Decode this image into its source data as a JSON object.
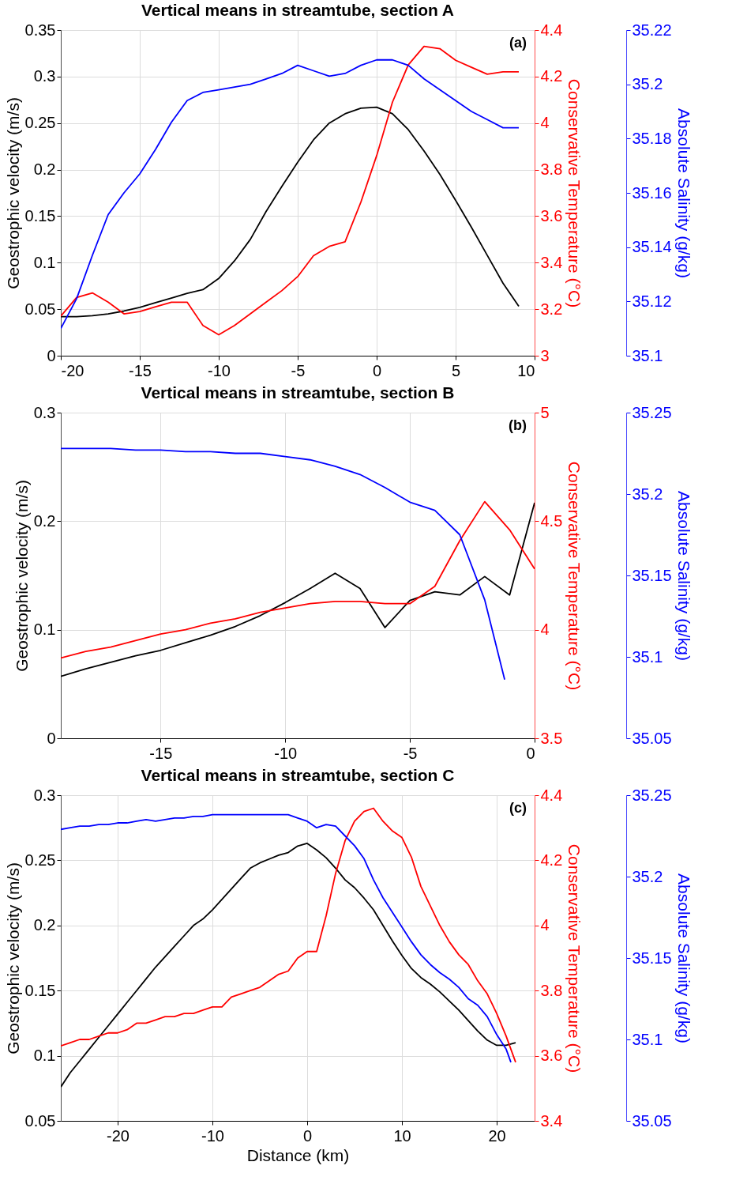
{
  "chart_data": [
    {
      "type": "line",
      "title": "Vertical means in streamtube, section A",
      "ylabel": "Geostrophic velocity (m/s)",
      "y2label": "Conservative Temperature (°C)",
      "y3label": "Absolute Salinity (g/kg)",
      "annotations": [
        "(a)"
      ],
      "grid": true,
      "xlim": [
        -20,
        10
      ],
      "xticks": [
        -20,
        -15,
        -10,
        -5,
        0,
        5,
        10
      ],
      "ylim": [
        0,
        0.35
      ],
      "yticks": [
        0,
        0.05,
        0.1,
        0.15,
        0.2,
        0.25,
        0.3,
        0.35
      ],
      "y2lim": [
        3,
        4.4
      ],
      "y2ticks": [
        3,
        3.2,
        3.4,
        3.6,
        3.8,
        4,
        4.2,
        4.4
      ],
      "y3lim": [
        35.1,
        35.22
      ],
      "y3ticks": [
        35.1,
        35.12,
        35.14,
        35.16,
        35.18,
        35.2,
        35.22
      ],
      "x": [
        -20,
        -19,
        -18,
        -17,
        -16,
        -15,
        -14,
        -13,
        -12,
        -11,
        -10,
        -9,
        -8,
        -7,
        -6,
        -5,
        -4,
        -3,
        -2,
        -1,
        0,
        1,
        2,
        3,
        4,
        5,
        6,
        7,
        8,
        9
      ],
      "series": [
        {
          "color": "#000000",
          "axis": "y",
          "values": [
            0.042,
            0.042,
            0.043,
            0.045,
            0.048,
            0.052,
            0.057,
            0.062,
            0.067,
            0.071,
            0.083,
            0.102,
            0.125,
            0.155,
            0.182,
            0.208,
            0.232,
            0.25,
            0.26,
            0.266,
            0.267,
            0.26,
            0.243,
            0.22,
            0.195,
            0.167,
            0.138,
            0.108,
            0.078,
            0.053
          ]
        },
        {
          "color": "#ff0000",
          "axis": "y2",
          "values": [
            3.17,
            3.25,
            3.27,
            3.23,
            3.18,
            3.19,
            3.21,
            3.23,
            3.23,
            3.13,
            3.09,
            3.13,
            3.18,
            3.23,
            3.28,
            3.34,
            3.43,
            3.47,
            3.49,
            3.66,
            3.86,
            4.09,
            4.25,
            4.33,
            4.32,
            4.27,
            4.24,
            4.21,
            4.22,
            4.22
          ]
        },
        {
          "color": "#0000ff",
          "axis": "y3",
          "values": [
            35.11,
            35.121,
            35.137,
            35.152,
            35.16,
            35.167,
            35.176,
            35.186,
            35.194,
            35.197,
            35.198,
            35.199,
            35.2,
            35.202,
            35.204,
            35.207,
            35.205,
            35.203,
            35.204,
            35.207,
            35.209,
            35.209,
            35.207,
            35.202,
            35.198,
            35.194,
            35.19,
            35.187,
            35.184,
            35.184
          ]
        }
      ]
    },
    {
      "type": "line",
      "title": "Vertical means in streamtube, section B",
      "ylabel": "Geostrophic velocity (m/s)",
      "y2label": "Conservative Temperature (°C)",
      "y3label": "Absolute Salinity (g/kg)",
      "annotations": [
        "(b)"
      ],
      "grid": true,
      "xlim": [
        -19,
        0
      ],
      "xticks": [
        -15,
        -10,
        -5,
        0
      ],
      "ylim": [
        0,
        0.3
      ],
      "yticks": [
        0,
        0.1,
        0.2,
        0.3
      ],
      "y2lim": [
        3.5,
        5
      ],
      "y2ticks": [
        3.5,
        4,
        4.5,
        5
      ],
      "y3lim": [
        35.05,
        35.25
      ],
      "y3ticks": [
        35.05,
        35.1,
        35.15,
        35.2,
        35.25
      ],
      "x": [
        -19,
        -18,
        -17,
        -16,
        -15,
        -14,
        -13,
        -12,
        -11,
        -10,
        -9,
        -8,
        -7,
        -6,
        -5,
        -4,
        -3,
        -2,
        -1,
        0
      ],
      "series": [
        {
          "color": "#000000",
          "axis": "y",
          "values": [
            0.057,
            0.064,
            0.07,
            0.076,
            0.081,
            0.088,
            0.095,
            0.103,
            0.113,
            0.125,
            0.138,
            0.152,
            0.138,
            0.102,
            0.127,
            0.135,
            0.132,
            0.149,
            0.132,
            0.217
          ]
        },
        {
          "color": "#ff0000",
          "axis": "y2",
          "values": [
            3.87,
            3.9,
            3.92,
            3.95,
            3.98,
            4.0,
            4.03,
            4.05,
            4.08,
            4.1,
            4.12,
            4.13,
            4.13,
            4.12,
            4.12,
            4.2,
            4.41,
            4.59,
            4.46,
            4.28
          ]
        },
        {
          "color": "#0000ff",
          "axis": "y3",
          "x": [
            -19,
            -18,
            -17,
            -16,
            -15,
            -14,
            -13,
            -12,
            -11,
            -10,
            -9,
            -8,
            -7,
            -6,
            -5,
            -4,
            -3,
            -2,
            -1.2
          ],
          "values": [
            35.228,
            35.228,
            35.228,
            35.227,
            35.227,
            35.226,
            35.226,
            35.225,
            35.225,
            35.223,
            35.221,
            35.217,
            35.212,
            35.204,
            35.195,
            35.19,
            35.175,
            35.135,
            35.086
          ]
        }
      ]
    },
    {
      "type": "line",
      "title": "Vertical means in streamtube, section C",
      "xlabel": "Distance (km)",
      "ylabel": "Geostrophic velocity (m/s)",
      "y2label": "Conservative Temperature (°C)",
      "y3label": "Absolute Salinity (g/kg)",
      "annotations": [
        "(c)"
      ],
      "grid": true,
      "xlim": [
        -26,
        24
      ],
      "xticks": [
        -20,
        -10,
        0,
        10,
        20
      ],
      "ylim": [
        0.05,
        0.3
      ],
      "yticks": [
        0.05,
        0.1,
        0.15,
        0.2,
        0.25,
        0.3
      ],
      "y2lim": [
        3.4,
        4.4
      ],
      "y2ticks": [
        3.4,
        3.6,
        3.8,
        4,
        4.2,
        4.4
      ],
      "y3lim": [
        35.05,
        35.25
      ],
      "y3ticks": [
        35.05,
        35.1,
        35.15,
        35.2,
        35.25
      ],
      "x": [
        -26,
        -25,
        -24,
        -23,
        -22,
        -21,
        -20,
        -19,
        -18,
        -17,
        -16,
        -15,
        -14,
        -13,
        -12,
        -11,
        -10,
        -9,
        -8,
        -7,
        -6,
        -5,
        -4,
        -3,
        -2,
        -1,
        0,
        1,
        2,
        3,
        4,
        5,
        6,
        7,
        8,
        9,
        10,
        11,
        12,
        13,
        14,
        15,
        16,
        17,
        18,
        19,
        20,
        21,
        22
      ],
      "series": [
        {
          "color": "#000000",
          "axis": "y",
          "values": [
            0.076,
            0.087,
            0.096,
            0.105,
            0.114,
            0.123,
            0.132,
            0.141,
            0.15,
            0.159,
            0.168,
            0.176,
            0.184,
            0.192,
            0.2,
            0.205,
            0.212,
            0.22,
            0.228,
            0.236,
            0.244,
            0.248,
            0.251,
            0.254,
            0.256,
            0.261,
            0.263,
            0.258,
            0.252,
            0.244,
            0.235,
            0.229,
            0.221,
            0.212,
            0.2,
            0.188,
            0.177,
            0.167,
            0.16,
            0.155,
            0.149,
            0.142,
            0.135,
            0.127,
            0.119,
            0.112,
            0.108,
            0.108,
            0.11
          ]
        },
        {
          "color": "#ff0000",
          "axis": "y2",
          "values": [
            3.63,
            3.64,
            3.65,
            3.65,
            3.66,
            3.67,
            3.67,
            3.68,
            3.7,
            3.7,
            3.71,
            3.72,
            3.72,
            3.73,
            3.73,
            3.74,
            3.75,
            3.75,
            3.78,
            3.79,
            3.8,
            3.81,
            3.83,
            3.85,
            3.86,
            3.9,
            3.92,
            3.92,
            4.03,
            4.16,
            4.26,
            4.32,
            4.35,
            4.36,
            4.32,
            4.29,
            4.27,
            4.21,
            4.12,
            4.06,
            4.0,
            3.95,
            3.91,
            3.88,
            3.83,
            3.79,
            3.73,
            3.66,
            3.58
          ]
        },
        {
          "color": "#0000ff",
          "axis": "y3",
          "x": [
            -26,
            -25,
            -24,
            -23,
            -22,
            -21,
            -20,
            -19,
            -18,
            -17,
            -16,
            -15,
            -14,
            -13,
            -12,
            -11,
            -10,
            -9,
            -8,
            -7,
            -6,
            -5,
            -4,
            -3,
            -2,
            -1,
            0,
            1,
            2,
            3,
            4,
            5,
            6,
            7,
            8,
            9,
            10,
            11,
            12,
            13,
            14,
            15,
            16,
            17,
            18,
            19,
            20,
            21,
            21.5
          ],
          "values": [
            35.229,
            35.23,
            35.231,
            35.231,
            35.232,
            35.232,
            35.233,
            35.233,
            35.234,
            35.235,
            35.234,
            35.235,
            35.236,
            35.236,
            35.237,
            35.237,
            35.238,
            35.238,
            35.238,
            35.238,
            35.238,
            35.238,
            35.238,
            35.238,
            35.238,
            35.236,
            35.234,
            35.23,
            35.232,
            35.231,
            35.225,
            35.219,
            35.211,
            35.198,
            35.187,
            35.178,
            35.169,
            35.16,
            35.152,
            35.146,
            35.141,
            35.137,
            35.132,
            35.125,
            35.121,
            35.114,
            35.103,
            35.094,
            35.086
          ]
        }
      ]
    }
  ]
}
